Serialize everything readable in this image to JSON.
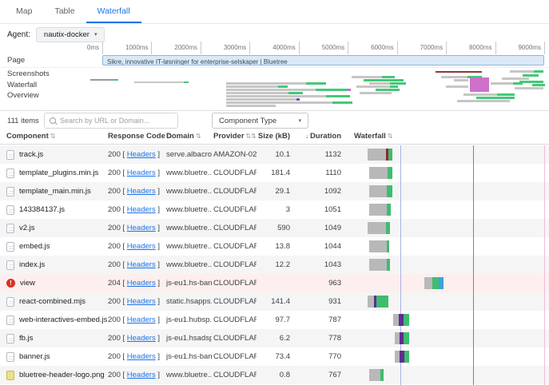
{
  "tabs": {
    "items": [
      {
        "label": "Map",
        "active": false
      },
      {
        "label": "Table",
        "active": false
      },
      {
        "label": "Waterfall",
        "active": true
      }
    ]
  },
  "agent": {
    "label": "Agent:",
    "value": "nautix-docker"
  },
  "timeline": {
    "ticks": [
      "0ms",
      "1000ms",
      "2000ms",
      "3000ms",
      "4000ms",
      "5000ms",
      "6000ms",
      "7000ms",
      "8000ms",
      "9000ms"
    ]
  },
  "page": {
    "label": "Page",
    "bar_text": "Sikre, innovative IT-løsninger for enterprise-selskaper | Bluetree"
  },
  "screenshots": {
    "label": "Screenshots"
  },
  "overview": {
    "label": "Waterfall Overview",
    "bars": [
      [
        3,
        13,
        28,
        2,
        "darkgray"
      ],
      [
        31,
        13,
        7,
        2,
        "green"
      ],
      [
        58,
        16,
        62,
        2,
        "gray"
      ],
      [
        120,
        16,
        6,
        2,
        "green"
      ],
      [
        173,
        17,
        100,
        3,
        "gray"
      ],
      [
        273,
        17,
        25,
        3,
        "green"
      ],
      [
        173,
        21,
        65,
        3,
        "gray"
      ],
      [
        238,
        21,
        12,
        3,
        "green"
      ],
      [
        173,
        25,
        112,
        3,
        "gray"
      ],
      [
        285,
        25,
        40,
        3,
        "green"
      ],
      [
        325,
        25,
        4,
        3,
        "magenta"
      ],
      [
        173,
        29,
        78,
        3,
        "gray"
      ],
      [
        251,
        29,
        18,
        3,
        "green"
      ],
      [
        173,
        33,
        125,
        3,
        "gray"
      ],
      [
        298,
        33,
        30,
        3,
        "green"
      ],
      [
        173,
        37,
        88,
        3,
        "gray"
      ],
      [
        261,
        37,
        4,
        3,
        "purple"
      ],
      [
        173,
        41,
        133,
        3,
        "gray"
      ],
      [
        306,
        41,
        25,
        3,
        "green"
      ],
      [
        173,
        45,
        62,
        3,
        "gray"
      ],
      [
        330,
        9,
        38,
        3,
        "gray"
      ],
      [
        368,
        9,
        16,
        3,
        "green"
      ],
      [
        345,
        13,
        50,
        3,
        "green"
      ],
      [
        352,
        17,
        26,
        3,
        "gray"
      ],
      [
        378,
        17,
        20,
        3,
        "green"
      ],
      [
        336,
        21,
        42,
        3,
        "gray"
      ],
      [
        378,
        21,
        10,
        3,
        "green"
      ],
      [
        360,
        25,
        30,
        3,
        "green"
      ],
      [
        340,
        29,
        40,
        3,
        "gray"
      ],
      [
        435,
        3,
        58,
        2,
        "darkred"
      ],
      [
        442,
        9,
        33,
        3,
        "gray"
      ],
      [
        475,
        9,
        18,
        3,
        "green"
      ],
      [
        458,
        13,
        18,
        3,
        "gray"
      ],
      [
        478,
        11,
        24,
        18,
        "magenta"
      ],
      [
        504,
        17,
        28,
        3,
        "gray"
      ],
      [
        532,
        17,
        12,
        3,
        "green"
      ],
      [
        448,
        21,
        28,
        3,
        "gray"
      ],
      [
        470,
        31,
        42,
        3,
        "gray"
      ],
      [
        512,
        31,
        22,
        3,
        "green"
      ],
      [
        486,
        35,
        48,
        3,
        "green"
      ],
      [
        462,
        39,
        66,
        3,
        "gray"
      ],
      [
        528,
        2,
        30,
        3,
        "gray"
      ],
      [
        558,
        2,
        12,
        3,
        "green"
      ],
      [
        544,
        7,
        20,
        3,
        "green"
      ],
      [
        518,
        11,
        34,
        3,
        "gray"
      ],
      [
        540,
        15,
        30,
        3,
        "green"
      ],
      [
        556,
        19,
        16,
        3,
        "green"
      ],
      [
        534,
        23,
        36,
        3,
        "gray"
      ]
    ]
  },
  "controls": {
    "items_count": "111 items",
    "search_placeholder": "Search by URL or Domain...",
    "filter_value": "Component Type"
  },
  "table": {
    "headers_link_label": "Headers",
    "columns": [
      {
        "label": "Component",
        "sort": "none"
      },
      {
        "label": "Response Code",
        "sort": "none"
      },
      {
        "label": "Domain",
        "sort": "none"
      },
      {
        "label": "Provider",
        "sort": "none"
      },
      {
        "label": "Size (kB)",
        "sort": "none"
      },
      {
        "label": "Duration",
        "sort": "desc"
      },
      {
        "label": "Waterfall",
        "sort": "none"
      }
    ],
    "rows": [
      {
        "icon": "js",
        "component": "track.js",
        "code": "200",
        "domain": "serve.albacro...",
        "provider": "AMAZON-02",
        "size": "10.1",
        "duration": "1132",
        "highlight": "stripe",
        "bar": [
          [
            20,
            23,
            "gray"
          ],
          [
            43,
            3,
            "darkred"
          ],
          [
            46,
            5,
            "green"
          ]
        ]
      },
      {
        "icon": "js",
        "component": "template_plugins.min.js",
        "code": "200",
        "domain": "www.bluetre...",
        "provider": "CLOUDFLAR...",
        "size": "181.4",
        "duration": "1110",
        "highlight": "",
        "bar": [
          [
            22,
            23,
            "gray"
          ],
          [
            45,
            6,
            "green"
          ]
        ]
      },
      {
        "icon": "js",
        "component": "template_main.min.js",
        "code": "200",
        "domain": "www.bluetre...",
        "provider": "CLOUDFLAR...",
        "size": "29.1",
        "duration": "1092",
        "highlight": "stripe",
        "bar": [
          [
            22,
            22,
            "gray"
          ],
          [
            44,
            7,
            "green"
          ]
        ]
      },
      {
        "icon": "js",
        "component": "143384137.js",
        "code": "200",
        "domain": "www.bluetre...",
        "provider": "CLOUDFLAR...",
        "size": "3",
        "duration": "1051",
        "highlight": "",
        "bar": [
          [
            22,
            22,
            "gray"
          ],
          [
            44,
            5,
            "green"
          ]
        ]
      },
      {
        "icon": "js",
        "component": "v2.js",
        "code": "200",
        "domain": "www.bluetre...",
        "provider": "CLOUDFLAR...",
        "size": "590",
        "duration": "1049",
        "highlight": "stripe",
        "bar": [
          [
            20,
            23,
            "gray"
          ],
          [
            43,
            5,
            "green"
          ]
        ]
      },
      {
        "icon": "js",
        "component": "embed.js",
        "code": "200",
        "domain": "www.bluetre...",
        "provider": "CLOUDFLAR...",
        "size": "13.8",
        "duration": "1044",
        "highlight": "",
        "bar": [
          [
            22,
            22,
            "gray"
          ],
          [
            44,
            3,
            "green"
          ]
        ]
      },
      {
        "icon": "js",
        "component": "index.js",
        "code": "200",
        "domain": "www.bluetre...",
        "provider": "CLOUDFLAR...",
        "size": "12.2",
        "duration": "1043",
        "highlight": "stripe",
        "bar": [
          [
            22,
            22,
            "gray"
          ],
          [
            44,
            4,
            "green"
          ]
        ]
      },
      {
        "icon": "error",
        "component": "view",
        "code": "204",
        "domain": "js-eu1.hs-ban...",
        "provider": "CLOUDFLAR...",
        "size": "",
        "duration": "963",
        "highlight": "error",
        "bar": [
          [
            91,
            10,
            "gray"
          ],
          [
            101,
            8,
            "green"
          ],
          [
            109,
            6,
            "blue"
          ]
        ]
      },
      {
        "icon": "js",
        "component": "react-combined.mjs",
        "code": "200",
        "domain": "static.hsapps...",
        "provider": "CLOUDFLAR...",
        "size": "141.4",
        "duration": "931",
        "highlight": "stripe",
        "bar": [
          [
            20,
            8,
            "gray"
          ],
          [
            28,
            3,
            "purple"
          ],
          [
            31,
            15,
            "green"
          ]
        ]
      },
      {
        "icon": "js",
        "component": "web-interactives-embed.js",
        "code": "200",
        "domain": "js-eu1.hubsp...",
        "provider": "CLOUDFLAR...",
        "size": "97.7",
        "duration": "787",
        "highlight": "",
        "bar": [
          [
            52,
            7,
            "gray"
          ],
          [
            59,
            6,
            "purple"
          ],
          [
            65,
            7,
            "green"
          ]
        ]
      },
      {
        "icon": "js",
        "component": "fb.js",
        "code": "200",
        "domain": "js-eu1.hsadsp...",
        "provider": "CLOUDFLAR...",
        "size": "6.2",
        "duration": "778",
        "highlight": "stripe",
        "bar": [
          [
            54,
            6,
            "gray"
          ],
          [
            60,
            5,
            "purple"
          ],
          [
            65,
            7,
            "green"
          ]
        ]
      },
      {
        "icon": "js",
        "component": "banner.js",
        "code": "200",
        "domain": "js-eu1.hs-ban...",
        "provider": "CLOUDFLAR...",
        "size": "73.4",
        "duration": "770",
        "highlight": "",
        "bar": [
          [
            54,
            6,
            "gray"
          ],
          [
            60,
            6,
            "purple"
          ],
          [
            66,
            6,
            "green"
          ]
        ]
      },
      {
        "icon": "img",
        "component": "bluetree-header-logo.png",
        "code": "200",
        "domain": "www.bluetre...",
        "provider": "CLOUDFLAR...",
        "size": "0.8",
        "duration": "767",
        "highlight": "stripe",
        "bar": [
          [
            22,
            14,
            "gray"
          ],
          [
            36,
            4,
            "green"
          ]
        ]
      }
    ]
  },
  "colors": {
    "accent": "#1a73e8",
    "link": "#1a73e8",
    "event_lines": {
      "blue": "#a9b2e6",
      "magenta": "#d4549b",
      "pink": "#f0bcd9"
    },
    "bars": {
      "gray": "#b8b8b8",
      "green": "#3ebd6f",
      "purple": "#5f2d91",
      "blue": "#3fa0df",
      "darkred": "#93282f"
    },
    "overview": {
      "gray": "#c6c6c6",
      "green": "#44c878",
      "magenta": "#cc70cc",
      "purple": "#8348a8",
      "darkred": "#8c3a3a",
      "darkgray": "#9a9a9a"
    }
  }
}
